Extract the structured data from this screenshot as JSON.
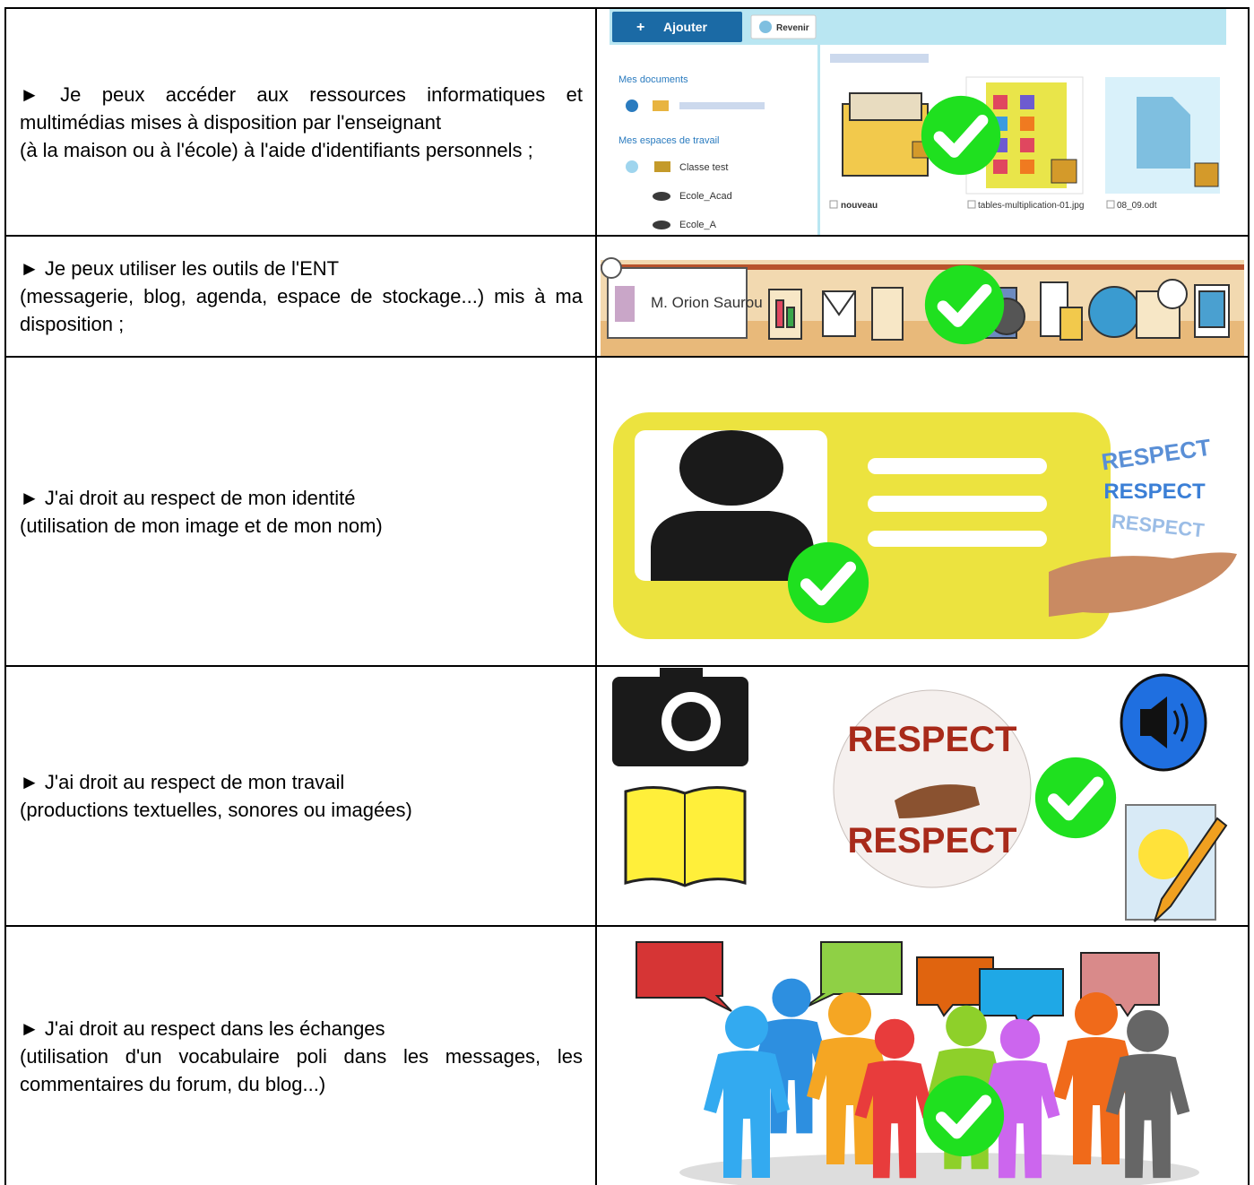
{
  "table": {
    "rows": [
      {
        "lines": [
          "► Je peux accéder aux ressources informatiques et multimédias mises à disposition par l'enseignant",
          "(à la maison ou à l'école) à l'aide d'identifiants personnels ;"
        ],
        "screenshot": {
          "add_button": "Ajouter",
          "back_button": "Revenir",
          "sidebar": [
            "Mes documents",
            "Mes espaces de travail",
            "Classe test",
            "Ecole_Acad",
            "Ecole_A"
          ],
          "files": [
            "nouveau",
            "tables-multiplication-01.jpg",
            "08_09.odt"
          ]
        }
      },
      {
        "lines": [
          "► Je peux utiliser les outils de l'ENT",
          "(messagerie, blog, agenda, espace de stockage...) mis à ma disposition ;"
        ],
        "banner": {
          "name": "M. Orion Saurou"
        }
      },
      {
        "lines": [
          "► J'ai droit au respect de mon identité",
          "(utilisation de mon image et de mon nom)"
        ],
        "words": [
          "RESPECT",
          "RESPECT",
          "RESPECT"
        ]
      },
      {
        "lines": [
          "► J'ai droit au respect de mon travail",
          "(productions textuelles, sonores ou imagées)"
        ],
        "globe_word": "RESPECT"
      },
      {
        "lines": [
          "► J'ai droit au respect dans les échanges",
          "(utilisation d'un vocabulaire poli dans les messages, les commentaires du forum, du blog...)"
        ]
      }
    ]
  }
}
